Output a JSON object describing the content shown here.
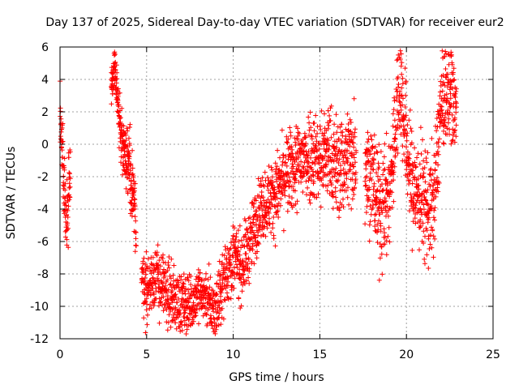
{
  "chart_data": {
    "type": "scatter",
    "title": "Day 137 of 2025, Sidereal Day-to-day VTEC variation (SDTVAR) for receiver eur2",
    "xlabel": "GPS time / hours",
    "ylabel": "SDTVAR / TECUs",
    "xlim": [
      0,
      25
    ],
    "ylim": [
      -12,
      6
    ],
    "xticks": [
      0,
      5,
      10,
      15,
      20,
      25
    ],
    "yticks": [
      -12,
      -10,
      -8,
      -6,
      -4,
      -2,
      0,
      2,
      4,
      6
    ],
    "grid": true,
    "marker": "+",
    "color": "#ff0000",
    "series": [
      {
        "name": "SDTVAR",
        "trend": {
          "x": [
            0.0,
            0.1,
            0.25,
            0.4,
            0.6,
            3.0,
            3.15,
            3.3,
            3.5,
            3.7,
            4.0,
            4.3,
            4.6,
            5.0,
            5.5,
            6.0,
            6.5,
            7.0,
            7.5,
            8.0,
            8.5,
            9.0,
            9.5,
            10.0,
            10.5,
            11.0,
            11.5,
            12.0,
            12.5,
            13.0,
            13.5,
            14.0,
            14.5,
            15.0,
            15.5,
            16.0,
            16.5,
            17.0,
            17.5,
            18.0,
            18.3,
            18.6,
            19.0,
            19.3,
            19.6,
            20.0,
            20.3,
            20.6,
            21.0,
            21.3,
            21.6,
            22.0,
            22.3,
            22.6,
            22.8
          ],
          "y": [
            2.0,
            0.0,
            -3.0,
            -5.0,
            -1.0,
            3.8,
            4.5,
            3.0,
            1.0,
            -0.5,
            -1.0,
            -4.0,
            -7.5,
            -9.0,
            -8.0,
            -9.0,
            -9.5,
            -9.8,
            -10.0,
            -9.0,
            -9.5,
            -10.5,
            -8.0,
            -7.0,
            -7.5,
            -6.0,
            -4.0,
            -3.5,
            -3.0,
            -2.0,
            -1.5,
            -1.0,
            -0.5,
            -1.0,
            -0.5,
            -1.5,
            -1.0,
            -0.5,
            -1.0,
            -2.0,
            -3.5,
            -4.0,
            -3.0,
            0.0,
            4.0,
            0.0,
            -2.5,
            -3.0,
            -3.5,
            -4.0,
            -3.5,
            2.5,
            3.0,
            3.5,
            2.0
          ]
        },
        "spread": {
          "x": [
            0.0,
            0.6,
            3.0,
            3.5,
            4.0,
            5.0,
            8.0,
            10.0,
            12.0,
            14.0,
            16.0,
            18.0,
            19.5,
            21.0,
            22.8
          ],
          "y": [
            1.5,
            1.5,
            0.8,
            1.2,
            1.5,
            1.5,
            1.2,
            1.5,
            1.5,
            2.0,
            2.2,
            2.5,
            2.5,
            2.5,
            2.0
          ]
        },
        "segments": [
          {
            "start": 0.0,
            "end": 0.6,
            "points": 90
          },
          {
            "start": 2.95,
            "end": 4.4,
            "points": 240
          },
          {
            "start": 4.7,
            "end": 17.1,
            "points": 1500
          },
          {
            "start": 17.6,
            "end": 22.9,
            "points": 700
          }
        ]
      }
    ]
  }
}
